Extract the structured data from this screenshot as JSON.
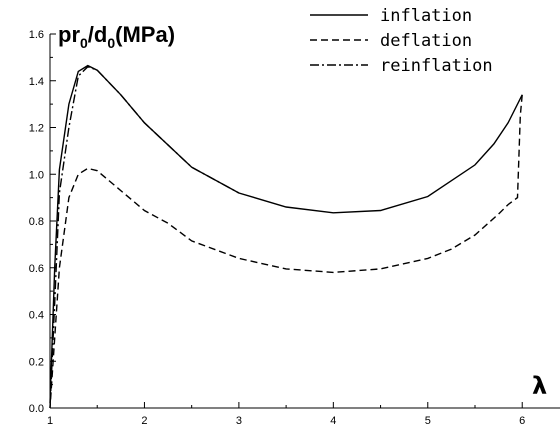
{
  "chart_data": {
    "type": "line",
    "ylabel": {
      "parts": [
        {
          "text": "pr",
          "sub": false
        },
        {
          "text": "0",
          "sub": true
        },
        {
          "text": "/d",
          "sub": false
        },
        {
          "text": "0",
          "sub": true
        },
        {
          "text": "(MPa)",
          "sub": false
        }
      ]
    },
    "xlabel": "λ",
    "xlim": [
      1,
      6.4
    ],
    "ylim": [
      0,
      1.6
    ],
    "xticks": [
      "1",
      "2",
      "3",
      "4",
      "5",
      "6"
    ],
    "yticks": [
      "0.0",
      "0.2",
      "0.4",
      "0.6",
      "0.8",
      "1.0",
      "1.2",
      "1.4",
      "1.6"
    ],
    "grid": false,
    "legend_position": "top-right",
    "series": [
      {
        "name": "inflation",
        "style": "solid",
        "x": [
          1.0,
          1.05,
          1.1,
          1.2,
          1.3,
          1.4,
          1.5,
          1.75,
          2.0,
          2.5,
          3.0,
          3.5,
          4.0,
          4.5,
          5.0,
          5.5,
          5.7,
          5.85,
          6.0
        ],
        "y": [
          0.02,
          0.6,
          1.02,
          1.3,
          1.44,
          1.465,
          1.445,
          1.34,
          1.22,
          1.03,
          0.92,
          0.86,
          0.835,
          0.845,
          0.905,
          1.04,
          1.13,
          1.22,
          1.34
        ]
      },
      {
        "name": "deflation",
        "style": "dashed",
        "x": [
          6.0,
          5.98,
          5.95,
          5.85,
          5.75,
          5.5,
          5.25,
          5.0,
          4.5,
          4.0,
          3.5,
          3.0,
          2.5,
          2.25,
          2.0,
          1.75,
          1.5,
          1.4,
          1.3,
          1.2,
          1.1,
          1.05,
          1.0
        ],
        "y": [
          1.34,
          1.25,
          0.9,
          0.87,
          0.83,
          0.74,
          0.68,
          0.64,
          0.595,
          0.58,
          0.595,
          0.64,
          0.715,
          0.79,
          0.845,
          0.93,
          1.015,
          1.025,
          1.0,
          0.9,
          0.6,
          0.3,
          0.0
        ]
      },
      {
        "name": "reinflation",
        "style": "dashdot",
        "x": [
          1.0,
          1.05,
          1.1,
          1.2,
          1.3,
          1.4,
          1.5,
          1.75,
          2.0,
          2.5,
          3.0
        ],
        "y": [
          0.0,
          0.45,
          0.92,
          1.2,
          1.42,
          1.46,
          1.445,
          1.34,
          1.22,
          1.03,
          0.92
        ]
      }
    ]
  }
}
